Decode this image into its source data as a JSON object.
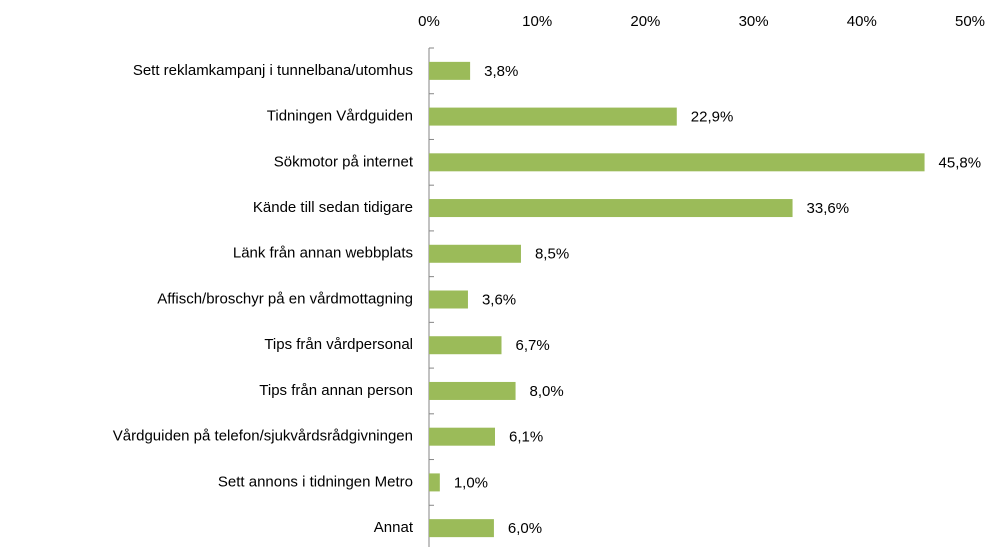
{
  "chart_data": {
    "type": "bar",
    "orientation": "horizontal",
    "categories": [
      "Sett reklamkampanj i tunnelbana/utomhus",
      "Tidningen Vårdguiden",
      "Sökmotor på internet",
      "Kände till sedan tidigare",
      "Länk från annan webbplats",
      "Affisch/broschyr på en vårdmottagning",
      "Tips från vårdpersonal",
      "Tips från annan person",
      "Vårdguiden på telefon/sjukvårdsrådgivningen",
      "Sett annons i tidningen Metro",
      "Annat"
    ],
    "values": [
      3.8,
      22.9,
      45.8,
      33.6,
      8.5,
      3.6,
      6.7,
      8.0,
      6.1,
      1.0,
      6.0
    ],
    "value_labels": [
      "3,8%",
      "22,9%",
      "45,8%",
      "33,6%",
      "8,5%",
      "3,6%",
      "6,7%",
      "8,0%",
      "6,1%",
      "1,0%",
      "6,0%"
    ],
    "color": "#9bbb59",
    "xlim": [
      0,
      50
    ],
    "xticks": [
      {
        "value": 0,
        "label": "0%"
      },
      {
        "value": 10,
        "label": "10%"
      },
      {
        "value": 20,
        "label": "20%"
      },
      {
        "value": 30,
        "label": "30%"
      },
      {
        "value": 40,
        "label": "40%"
      },
      {
        "value": 50,
        "label": "50%"
      }
    ],
    "grid": false
  }
}
